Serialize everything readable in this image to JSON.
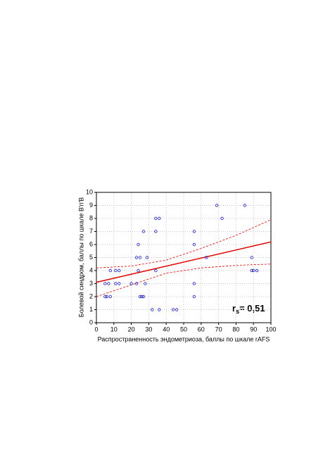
{
  "chart_data": {
    "type": "scatter",
    "x_label": "Распространенность эндометриоза, баллы по шкале rAFS",
    "y_label": "Болевой синдром, баллы по шкале В'п'В",
    "annotation": [
      "r",
      "s",
      "= 0,51"
    ],
    "xlim": [
      0,
      100
    ],
    "xticks": [
      0,
      10,
      20,
      30,
      40,
      50,
      60,
      70,
      80,
      90,
      100
    ],
    "ylim": [
      0,
      10
    ],
    "yticks": [
      0,
      1,
      2,
      3,
      4,
      5,
      6,
      7,
      8,
      9,
      10
    ],
    "grid": true,
    "points": {
      "color": "#2020c0",
      "x": [
        5,
        6,
        8,
        25,
        26,
        27,
        56,
        5,
        7,
        11,
        13,
        20,
        23,
        28,
        56,
        8,
        11,
        13,
        24,
        34,
        89,
        90,
        92,
        23,
        25,
        29,
        63,
        89,
        24,
        56,
        27,
        34,
        56,
        34,
        36,
        72,
        69,
        85,
        32,
        36,
        44,
        46
      ],
      "y": [
        2,
        2,
        2,
        2,
        2,
        2,
        2,
        3,
        3,
        3,
        3,
        3,
        3,
        3,
        3,
        4,
        4,
        4,
        4,
        4,
        4,
        4,
        4,
        5,
        5,
        5,
        5,
        5,
        6,
        6,
        7,
        7,
        7,
        8,
        8,
        8,
        9,
        9,
        1,
        1,
        1,
        1
      ]
    },
    "fit": {
      "color": "#e00000",
      "x": [
        0,
        100
      ],
      "y": [
        3.1,
        6.2
      ]
    },
    "ci_upper": {
      "color": "#e00000",
      "x": [
        0,
        20,
        40,
        60,
        80,
        100
      ],
      "y": [
        4.2,
        4.35,
        4.8,
        5.7,
        6.7,
        7.9
      ]
    },
    "ci_lower": {
      "color": "#e00000",
      "x": [
        0,
        20,
        40,
        60,
        80,
        100
      ],
      "y": [
        2.0,
        2.9,
        3.8,
        4.2,
        4.4,
        4.5
      ]
    }
  }
}
